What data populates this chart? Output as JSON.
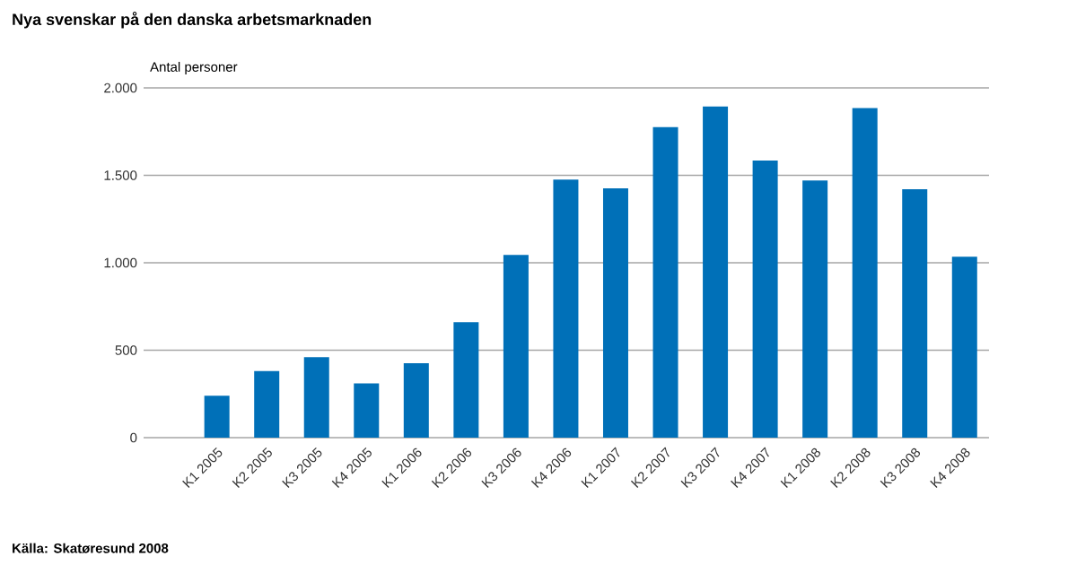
{
  "chart_data": {
    "type": "bar",
    "title": "Nya svenskar på den danska arbetsmarknaden",
    "ylabel": "Antal personer",
    "categories": [
      "K1 2005",
      "K2 2005",
      "K3 2005",
      "K4 2005",
      "K1 2006",
      "K2 2006",
      "K3 2006",
      "K4 2006",
      "K1 2007",
      "K2 2007",
      "K3 2007",
      "K4 2007",
      "K1 2008",
      "K2 2008",
      "K3 2008",
      "K4 2008"
    ],
    "values": [
      240,
      380,
      460,
      310,
      425,
      660,
      1045,
      1475,
      1425,
      1775,
      1895,
      1585,
      1470,
      1885,
      1420,
      1035
    ],
    "color": "#0070b8",
    "ylim": [
      0,
      2000
    ],
    "yticks": [
      {
        "value": 0,
        "label": "0"
      },
      {
        "value": 500,
        "label": "500"
      },
      {
        "value": 1000,
        "label": "1.000"
      },
      {
        "value": 1500,
        "label": "1.500"
      },
      {
        "value": 2000,
        "label": "2.000"
      }
    ],
    "grid": "y",
    "annotations": [
      "Källa: Skatøresund 2008"
    ]
  }
}
